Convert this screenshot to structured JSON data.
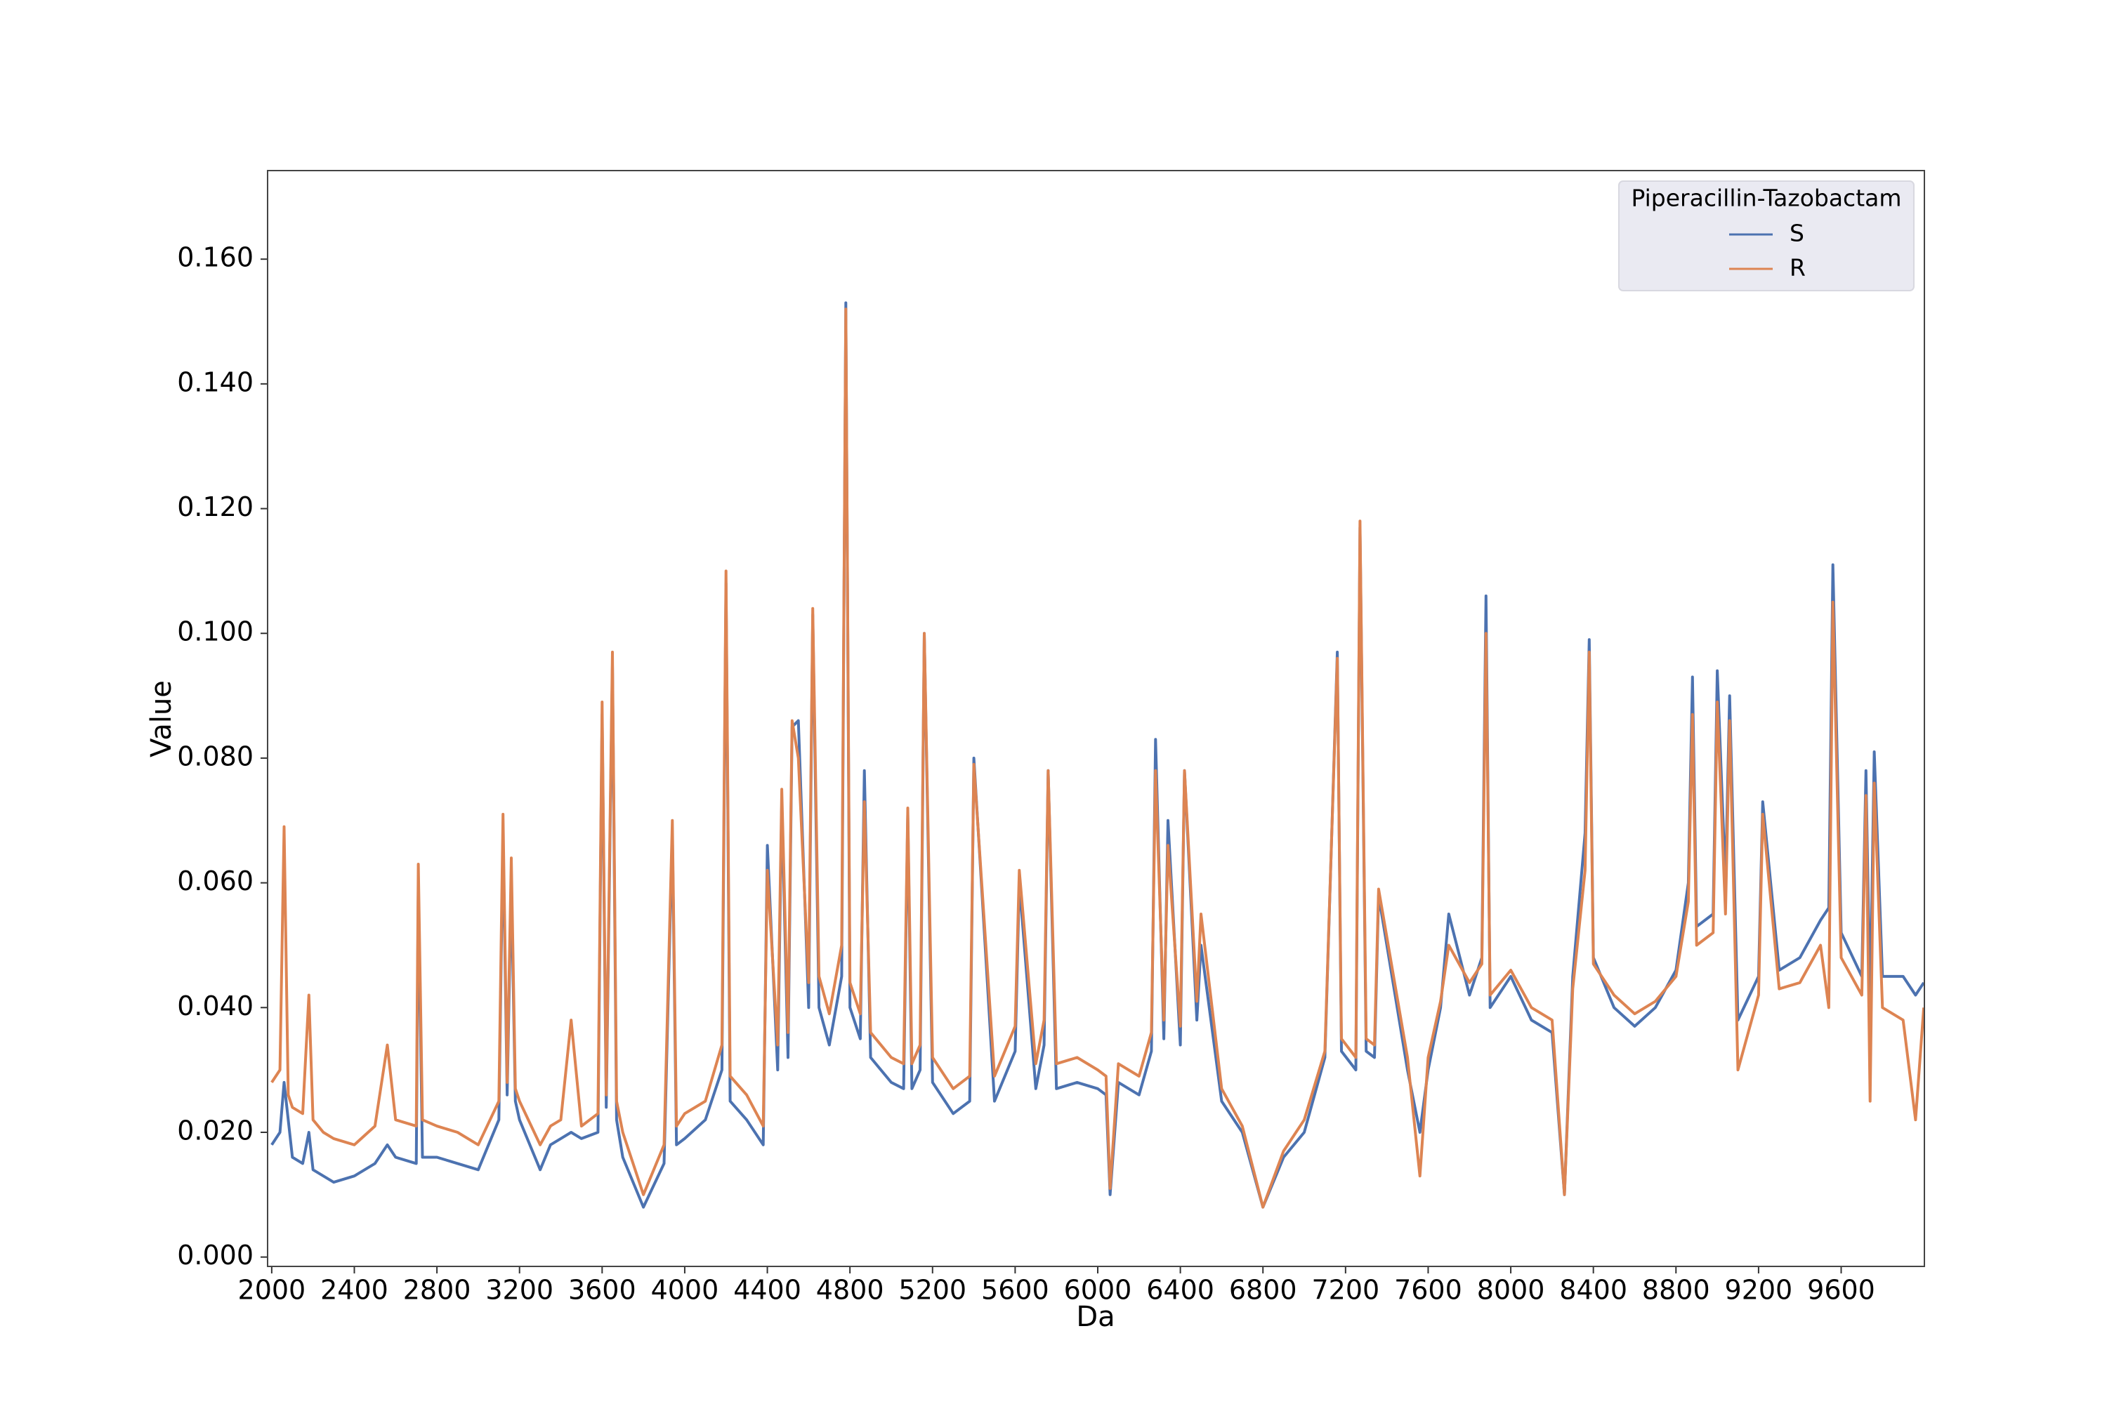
{
  "chart_data": {
    "type": "line",
    "xlabel": "Da",
    "ylabel": "Value",
    "legend_title": "Piperacillin-Tazobactam",
    "legend": "upper right",
    "xlim": [
      1980,
      10003
    ],
    "ylim": [
      -0.0015,
      0.1742
    ],
    "xticks": [
      2000,
      2400,
      2800,
      3200,
      3600,
      4000,
      4400,
      4800,
      5200,
      5600,
      6000,
      6400,
      6800,
      7200,
      7600,
      8000,
      8400,
      8800,
      9200,
      9600
    ],
    "yticks": [
      {
        "value": 0,
        "label": "0.000"
      },
      {
        "value": 0.02,
        "label": "0.020"
      },
      {
        "value": 0.04,
        "label": "0.040"
      },
      {
        "value": 0.06,
        "label": "0.060"
      },
      {
        "value": 0.08,
        "label": "0.080"
      },
      {
        "value": 0.1,
        "label": "0.100"
      },
      {
        "value": 0.12,
        "label": "0.120"
      },
      {
        "value": 0.14,
        "label": "0.140"
      },
      {
        "value": 0.16,
        "label": "0.160"
      }
    ],
    "x": [
      2000,
      2040,
      2060,
      2080,
      2100,
      2150,
      2180,
      2200,
      2250,
      2300,
      2400,
      2500,
      2560,
      2600,
      2700,
      2710,
      2730,
      2800,
      2900,
      3000,
      3100,
      3120,
      3140,
      3160,
      3180,
      3200,
      3300,
      3350,
      3400,
      3450,
      3500,
      3580,
      3600,
      3620,
      3650,
      3670,
      3700,
      3800,
      3900,
      3940,
      3960,
      4000,
      4100,
      4180,
      4200,
      4220,
      4300,
      4380,
      4400,
      4450,
      4470,
      4500,
      4520,
      4550,
      4600,
      4620,
      4650,
      4700,
      4760,
      4780,
      4800,
      4850,
      4870,
      4900,
      5000,
      5060,
      5080,
      5100,
      5140,
      5160,
      5200,
      5300,
      5380,
      5400,
      5500,
      5600,
      5620,
      5700,
      5740,
      5760,
      5800,
      5900,
      6000,
      6040,
      6060,
      6100,
      6200,
      6260,
      6280,
      6320,
      6340,
      6400,
      6420,
      6480,
      6500,
      6600,
      6700,
      6800,
      6900,
      7000,
      7100,
      7160,
      7180,
      7250,
      7270,
      7300,
      7340,
      7360,
      7500,
      7560,
      7600,
      7660,
      7700,
      7800,
      7860,
      7880,
      7900,
      8000,
      8100,
      8200,
      8260,
      8300,
      8360,
      8380,
      8400,
      8500,
      8600,
      8700,
      8800,
      8860,
      8880,
      8900,
      8980,
      9000,
      9040,
      9060,
      9100,
      9200,
      9220,
      9300,
      9400,
      9500,
      9540,
      9560,
      9600,
      9700,
      9720,
      9740,
      9760,
      9800,
      9900,
      9960,
      10000
    ],
    "series": [
      {
        "name": "S",
        "color": "#4c72b0",
        "values": [
          0.018,
          0.02,
          0.028,
          0.022,
          0.016,
          0.015,
          0.02,
          0.014,
          0.013,
          0.012,
          0.013,
          0.015,
          0.018,
          0.016,
          0.015,
          0.06,
          0.016,
          0.016,
          0.015,
          0.014,
          0.022,
          0.068,
          0.026,
          0.06,
          0.025,
          0.022,
          0.014,
          0.018,
          0.019,
          0.02,
          0.019,
          0.02,
          0.087,
          0.024,
          0.095,
          0.022,
          0.016,
          0.008,
          0.015,
          0.068,
          0.018,
          0.019,
          0.022,
          0.03,
          0.108,
          0.025,
          0.022,
          0.018,
          0.066,
          0.03,
          0.073,
          0.032,
          0.085,
          0.086,
          0.04,
          0.103,
          0.04,
          0.034,
          0.045,
          0.153,
          0.04,
          0.035,
          0.078,
          0.032,
          0.028,
          0.027,
          0.071,
          0.027,
          0.03,
          0.1,
          0.028,
          0.023,
          0.025,
          0.08,
          0.025,
          0.033,
          0.06,
          0.027,
          0.034,
          0.078,
          0.027,
          0.028,
          0.027,
          0.026,
          0.01,
          0.028,
          0.026,
          0.033,
          0.083,
          0.035,
          0.07,
          0.034,
          0.078,
          0.038,
          0.05,
          0.025,
          0.02,
          0.008,
          0.016,
          0.02,
          0.032,
          0.097,
          0.033,
          0.03,
          0.117,
          0.033,
          0.032,
          0.058,
          0.03,
          0.02,
          0.03,
          0.04,
          0.055,
          0.042,
          0.048,
          0.106,
          0.04,
          0.045,
          0.038,
          0.036,
          0.01,
          0.045,
          0.068,
          0.099,
          0.048,
          0.04,
          0.037,
          0.04,
          0.046,
          0.06,
          0.093,
          0.053,
          0.055,
          0.094,
          0.06,
          0.09,
          0.038,
          0.045,
          0.073,
          0.046,
          0.048,
          0.054,
          0.056,
          0.111,
          0.052,
          0.045,
          0.078,
          0.04,
          0.081,
          0.045,
          0.045,
          0.042,
          0.044
        ]
      },
      {
        "name": "R",
        "color": "#dd8452",
        "values": [
          0.028,
          0.03,
          0.069,
          0.026,
          0.024,
          0.023,
          0.042,
          0.022,
          0.02,
          0.019,
          0.018,
          0.021,
          0.034,
          0.022,
          0.021,
          0.063,
          0.022,
          0.021,
          0.02,
          0.018,
          0.025,
          0.071,
          0.028,
          0.064,
          0.027,
          0.025,
          0.018,
          0.021,
          0.022,
          0.038,
          0.021,
          0.023,
          0.089,
          0.026,
          0.097,
          0.025,
          0.02,
          0.01,
          0.018,
          0.07,
          0.021,
          0.023,
          0.025,
          0.034,
          0.11,
          0.029,
          0.026,
          0.021,
          0.062,
          0.034,
          0.075,
          0.036,
          0.086,
          0.08,
          0.044,
          0.104,
          0.045,
          0.039,
          0.05,
          0.152,
          0.044,
          0.039,
          0.073,
          0.036,
          0.032,
          0.031,
          0.072,
          0.031,
          0.034,
          0.1,
          0.032,
          0.027,
          0.029,
          0.079,
          0.029,
          0.037,
          0.062,
          0.031,
          0.038,
          0.078,
          0.031,
          0.032,
          0.03,
          0.029,
          0.011,
          0.031,
          0.029,
          0.036,
          0.078,
          0.038,
          0.066,
          0.037,
          0.078,
          0.041,
          0.055,
          0.027,
          0.021,
          0.008,
          0.017,
          0.022,
          0.033,
          0.096,
          0.035,
          0.032,
          0.118,
          0.035,
          0.034,
          0.059,
          0.032,
          0.013,
          0.032,
          0.041,
          0.05,
          0.044,
          0.047,
          0.1,
          0.042,
          0.046,
          0.04,
          0.038,
          0.01,
          0.043,
          0.062,
          0.097,
          0.047,
          0.042,
          0.039,
          0.041,
          0.045,
          0.057,
          0.087,
          0.05,
          0.052,
          0.089,
          0.055,
          0.086,
          0.03,
          0.042,
          0.071,
          0.043,
          0.044,
          0.05,
          0.04,
          0.105,
          0.048,
          0.042,
          0.074,
          0.025,
          0.076,
          0.04,
          0.038,
          0.022,
          0.04
        ]
      }
    ]
  }
}
